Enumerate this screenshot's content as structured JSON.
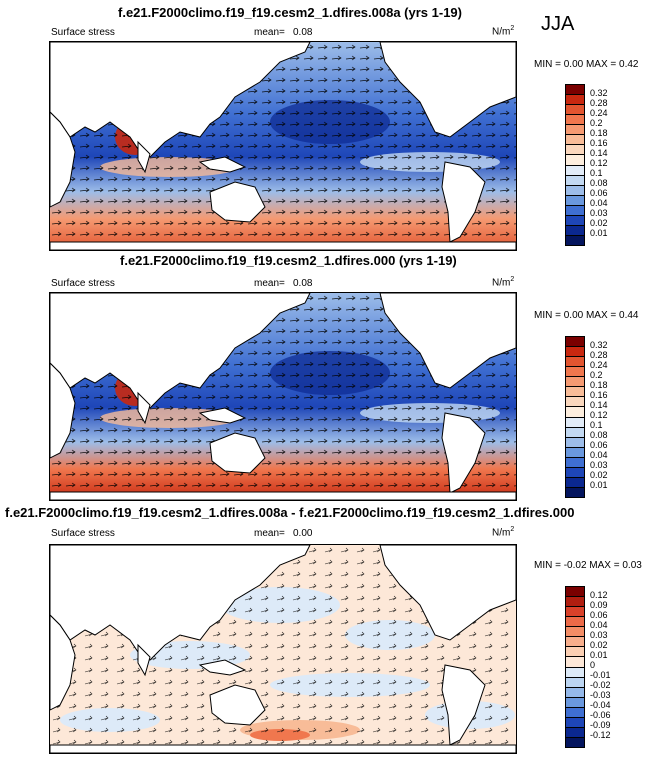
{
  "season": "JJA",
  "panels": [
    {
      "title": "f.e21.F2000climo.f19_f19.cesm2_1.dfires.008a (yrs 1-19)",
      "variable": "Surface stress",
      "mean_label": "mean=",
      "mean_value": "0.08",
      "units": "N/m",
      "units_sup": "2",
      "minmax": "MIN =  0.00 MAX =  0.42",
      "colorbar_ticks": [
        "0.32",
        "0.28",
        "0.24",
        "0.2",
        "0.18",
        "0.16",
        "0.14",
        "0.12",
        "0.1",
        "0.08",
        "0.06",
        "0.04",
        "0.03",
        "0.02",
        "0.01"
      ],
      "colorbar_colors": [
        "#7a0000",
        "#c82810",
        "#e25530",
        "#f0774e",
        "#f59a72",
        "#f8bc98",
        "#fad7bd",
        "#fdeede",
        "#e2ecf8",
        "#c3d9f2",
        "#9dbde9",
        "#6a98de",
        "#3f6fd2",
        "#1e46b8",
        "#0b2890",
        "#04155e"
      ]
    },
    {
      "title": "f.e21.F2000climo.f19_f19.cesm2_1.dfires.000 (yrs 1-19)",
      "variable": "Surface stress",
      "mean_label": "mean=",
      "mean_value": "0.08",
      "units": "N/m",
      "units_sup": "2",
      "minmax": "MIN =  0.00 MAX =  0.44",
      "colorbar_ticks": [
        "0.32",
        "0.28",
        "0.24",
        "0.2",
        "0.18",
        "0.16",
        "0.14",
        "0.12",
        "0.1",
        "0.08",
        "0.06",
        "0.04",
        "0.03",
        "0.02",
        "0.01"
      ],
      "colorbar_colors": [
        "#7a0000",
        "#c82810",
        "#e25530",
        "#f0774e",
        "#f59a72",
        "#f8bc98",
        "#fad7bd",
        "#fdeede",
        "#e2ecf8",
        "#c3d9f2",
        "#9dbde9",
        "#6a98de",
        "#3f6fd2",
        "#1e46b8",
        "#0b2890",
        "#04155e"
      ]
    },
    {
      "title": "f.e21.F2000climo.f19_f19.cesm2_1.dfires.008a - f.e21.F2000climo.f19_f19.cesm2_1.dfires.000",
      "variable": "Surface stress",
      "mean_label": "mean=",
      "mean_value": "0.00",
      "units": "N/m",
      "units_sup": "2",
      "minmax": "MIN = -0.02 MAX =  0.03",
      "colorbar_ticks": [
        "0.12",
        "0.09",
        "0.06",
        "0.04",
        "0.03",
        "0.02",
        "0.01",
        "0",
        "-0.01",
        "-0.02",
        "-0.03",
        "-0.04",
        "-0.06",
        "-0.09",
        "-0.12"
      ],
      "colorbar_colors": [
        "#7a0000",
        "#b01e10",
        "#d9412a",
        "#ec6a48",
        "#f38d66",
        "#f7ae8c",
        "#fbcfb3",
        "#fde8d8",
        "#ddeaf8",
        "#bcd5f2",
        "#95b9ea",
        "#6a98de",
        "#3f6fd2",
        "#1e46b8",
        "#0b2890",
        "#04155e"
      ]
    }
  ]
}
